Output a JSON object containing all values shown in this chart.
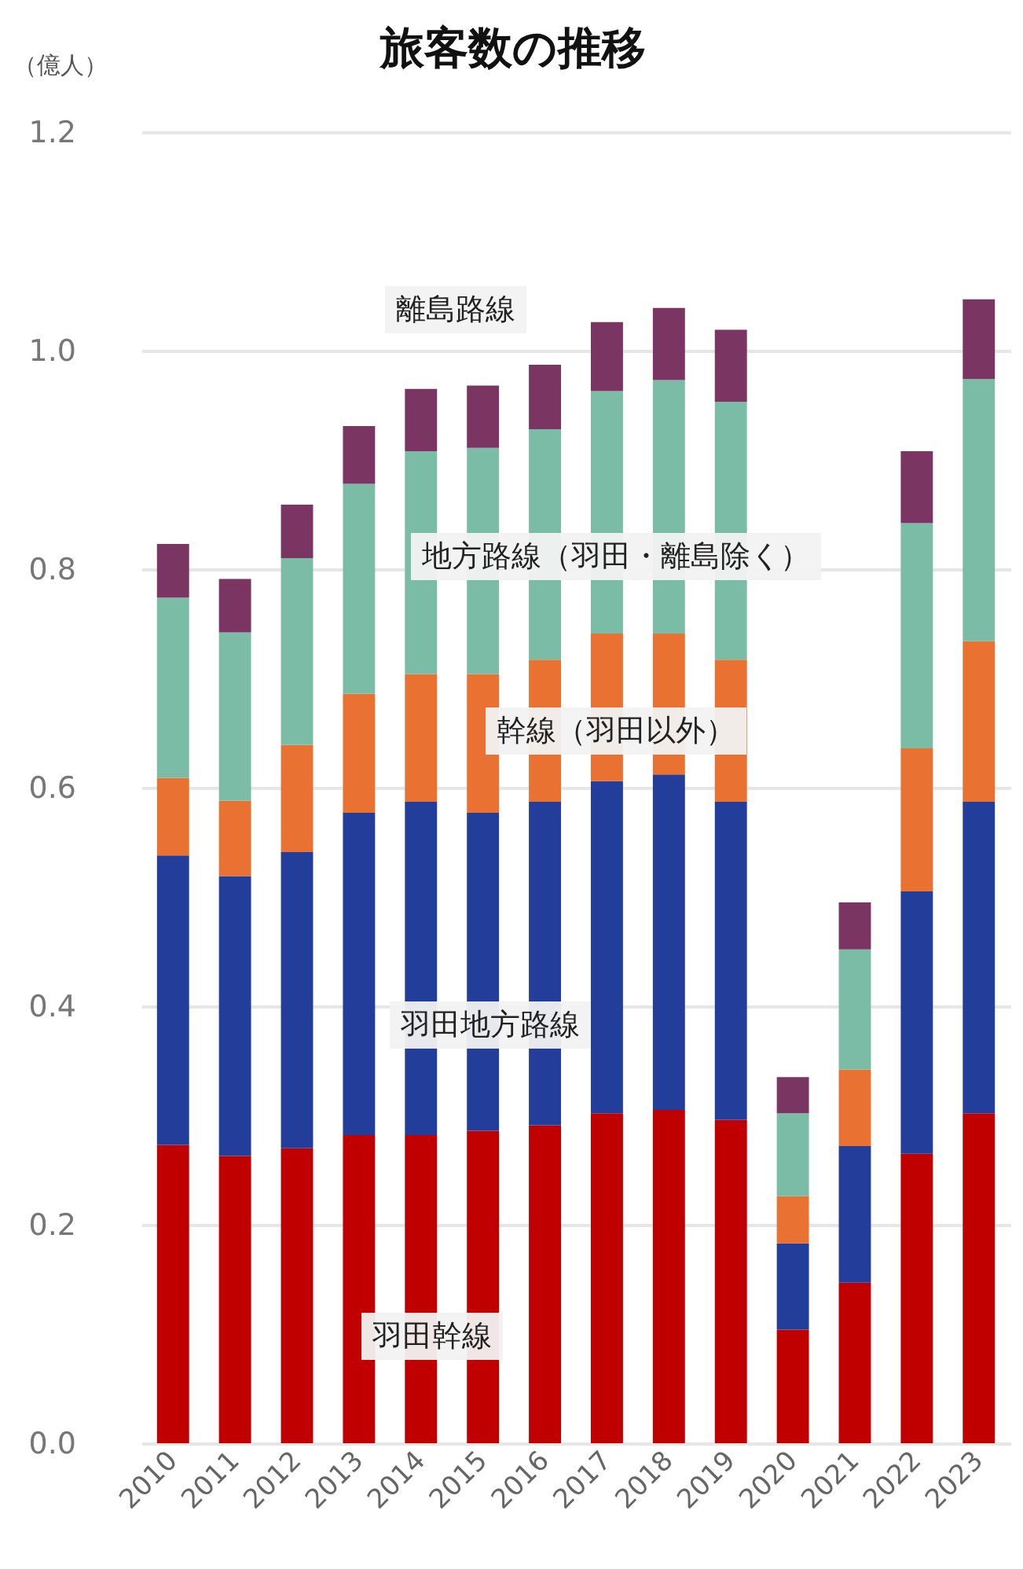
{
  "chart_data": {
    "type": "bar",
    "stacked": true,
    "title": "旅客数の推移",
    "ylabel": "（億人）",
    "categories": [
      "2010",
      "2011",
      "2012",
      "2013",
      "2014",
      "2015",
      "2016",
      "2017",
      "2018",
      "2019",
      "2020",
      "2021",
      "2022",
      "2023"
    ],
    "series": [
      {
        "name": "羽田幹線",
        "color": "#c00000",
        "values": [
          0.273,
          0.263,
          0.27,
          0.282,
          0.282,
          0.286,
          0.291,
          0.302,
          0.305,
          0.296,
          0.104,
          0.147,
          0.265,
          0.302
        ]
      },
      {
        "name": "羽田地方路線",
        "color": "#233d9b",
        "values": [
          0.265,
          0.256,
          0.271,
          0.295,
          0.305,
          0.291,
          0.296,
          0.304,
          0.307,
          0.291,
          0.079,
          0.125,
          0.24,
          0.285
        ]
      },
      {
        "name": "幹線（羽田以外）",
        "color": "#e97132",
        "values": [
          0.071,
          0.069,
          0.098,
          0.109,
          0.117,
          0.127,
          0.13,
          0.135,
          0.129,
          0.13,
          0.043,
          0.07,
          0.131,
          0.147
        ]
      },
      {
        "name": "地方路線（羽田・離島除く）",
        "color": "#7bbca6",
        "values": [
          0.165,
          0.154,
          0.171,
          0.192,
          0.204,
          0.207,
          0.211,
          0.222,
          0.232,
          0.236,
          0.076,
          0.11,
          0.206,
          0.24
        ]
      },
      {
        "name": "離島路線",
        "color": "#7b3562",
        "values": [
          0.049,
          0.049,
          0.049,
          0.053,
          0.057,
          0.057,
          0.059,
          0.063,
          0.066,
          0.066,
          0.033,
          0.043,
          0.066,
          0.073
        ]
      }
    ],
    "ylim": [
      0,
      1.2
    ],
    "yticks": [
      {
        "value": 0,
        "label": "0.0"
      },
      {
        "value": 0.2,
        "label": "0.2"
      },
      {
        "value": 0.4,
        "label": "0.4"
      },
      {
        "value": 0.6,
        "label": "0.6"
      },
      {
        "value": 0.8,
        "label": "0.8"
      },
      {
        "value": 1.0,
        "label": "1.0"
      },
      {
        "value": 1.2,
        "label": "1.2"
      }
    ],
    "grid": "y",
    "legend": false
  }
}
